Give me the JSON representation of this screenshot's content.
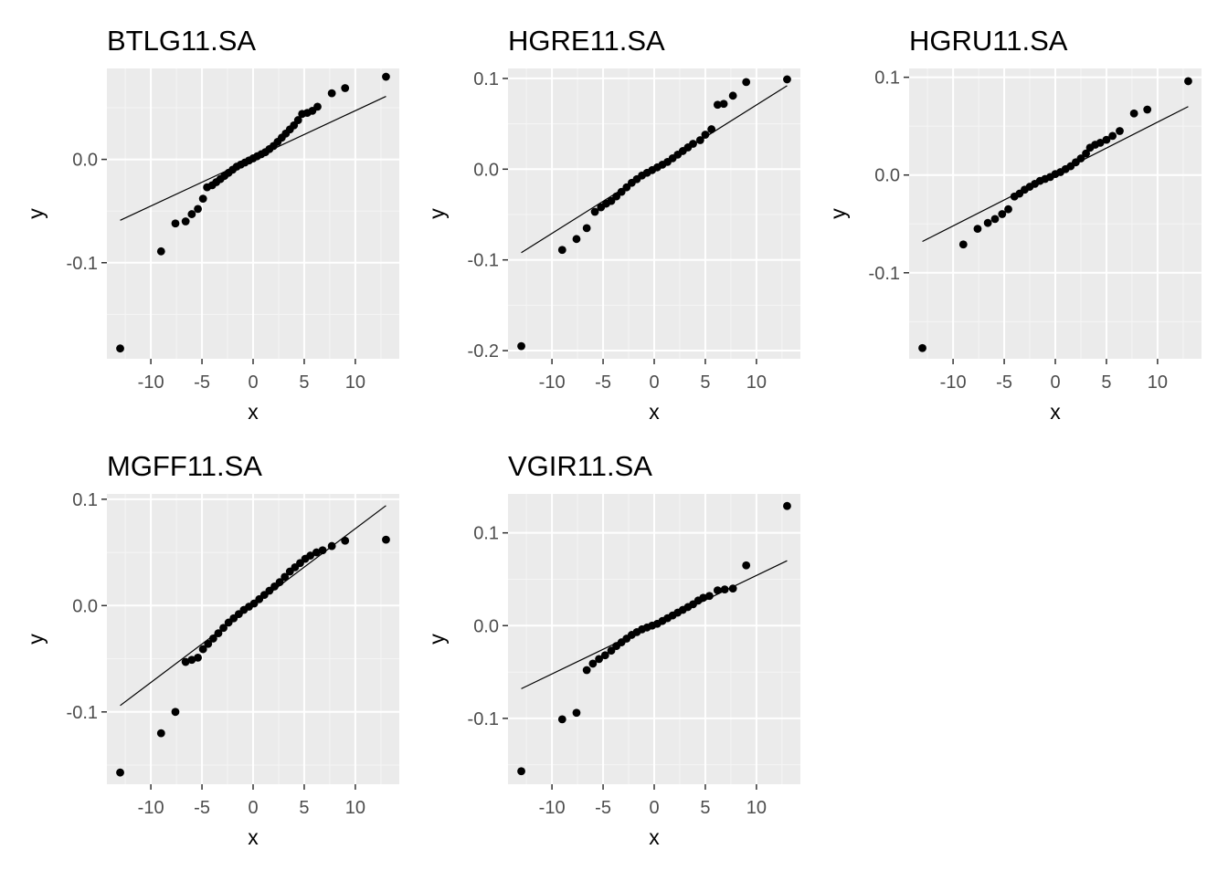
{
  "chart_data": [
    {
      "type": "scatter",
      "title": "BTLG11.SA",
      "xlabel": "x",
      "ylabel": "y",
      "xlim": [
        -14.3,
        14.3
      ],
      "ylim": [
        -0.193,
        0.088
      ],
      "x_ticks": [
        -10,
        -5,
        0,
        5,
        10
      ],
      "x_tick_labels": [
        "-10",
        "-5",
        "0",
        "5",
        "10"
      ],
      "y_ticks": [
        -0.1,
        0.0
      ],
      "y_tick_labels": [
        "-0.1",
        "0.0"
      ],
      "line": [
        [
          -13.0,
          -0.059
        ],
        [
          13.0,
          0.061
        ]
      ],
      "points": [
        [
          -13.0,
          -0.183
        ],
        [
          -9.0,
          -0.089
        ],
        [
          -7.6,
          -0.062
        ],
        [
          -6.6,
          -0.06
        ],
        [
          -6.0,
          -0.053
        ],
        [
          -5.4,
          -0.048
        ],
        [
          -4.9,
          -0.038
        ],
        [
          -4.5,
          -0.027
        ],
        [
          -4.0,
          -0.025
        ],
        [
          -3.6,
          -0.022
        ],
        [
          -3.2,
          -0.019
        ],
        [
          -2.8,
          -0.016
        ],
        [
          -2.4,
          -0.013
        ],
        [
          -2.0,
          -0.01
        ],
        [
          -1.6,
          -0.007
        ],
        [
          -1.2,
          -0.005
        ],
        [
          -0.8,
          -0.003
        ],
        [
          -0.4,
          -0.001
        ],
        [
          0.0,
          0.001
        ],
        [
          0.4,
          0.003
        ],
        [
          0.8,
          0.005
        ],
        [
          1.2,
          0.007
        ],
        [
          1.6,
          0.01
        ],
        [
          2.0,
          0.013
        ],
        [
          2.4,
          0.017
        ],
        [
          2.8,
          0.021
        ],
        [
          3.2,
          0.025
        ],
        [
          3.6,
          0.029
        ],
        [
          4.0,
          0.033
        ],
        [
          4.4,
          0.038
        ],
        [
          4.8,
          0.044
        ],
        [
          5.3,
          0.045
        ],
        [
          5.8,
          0.047
        ],
        [
          6.3,
          0.051
        ],
        [
          7.7,
          0.064
        ],
        [
          9.0,
          0.069
        ],
        [
          13.0,
          0.08
        ]
      ]
    },
    {
      "type": "scatter",
      "title": "HGRE11.SA",
      "xlabel": "x",
      "ylabel": "y",
      "xlim": [
        -14.3,
        14.3
      ],
      "ylim": [
        -0.209,
        0.111
      ],
      "x_ticks": [
        -10,
        -5,
        0,
        5,
        10
      ],
      "x_tick_labels": [
        "-10",
        "-5",
        "0",
        "5",
        "10"
      ],
      "y_ticks": [
        -0.2,
        -0.1,
        0.0,
        0.1
      ],
      "y_tick_labels": [
        "-0.2",
        "-0.1",
        "0.0",
        "0.1"
      ],
      "line": [
        [
          -13.0,
          -0.092
        ],
        [
          13.0,
          0.092
        ]
      ],
      "points": [
        [
          -13.0,
          -0.195
        ],
        [
          -9.0,
          -0.089
        ],
        [
          -7.6,
          -0.077
        ],
        [
          -6.6,
          -0.065
        ],
        [
          -5.8,
          -0.047
        ],
        [
          -5.2,
          -0.042
        ],
        [
          -4.7,
          -0.038
        ],
        [
          -4.2,
          -0.035
        ],
        [
          -3.7,
          -0.03
        ],
        [
          -3.2,
          -0.025
        ],
        [
          -2.7,
          -0.02
        ],
        [
          -2.2,
          -0.015
        ],
        [
          -1.7,
          -0.011
        ],
        [
          -1.2,
          -0.007
        ],
        [
          -0.7,
          -0.004
        ],
        [
          -0.2,
          -0.001
        ],
        [
          0.3,
          0.002
        ],
        [
          0.8,
          0.005
        ],
        [
          1.3,
          0.008
        ],
        [
          1.8,
          0.012
        ],
        [
          2.3,
          0.016
        ],
        [
          2.8,
          0.02
        ],
        [
          3.3,
          0.024
        ],
        [
          3.8,
          0.028
        ],
        [
          4.5,
          0.032
        ],
        [
          5.0,
          0.038
        ],
        [
          5.6,
          0.044
        ],
        [
          6.2,
          0.071
        ],
        [
          6.8,
          0.072
        ],
        [
          7.7,
          0.081
        ],
        [
          9.0,
          0.096
        ],
        [
          13.0,
          0.099
        ]
      ]
    },
    {
      "type": "scatter",
      "title": "HGRU11.SA",
      "xlabel": "x",
      "ylabel": "y",
      "xlim": [
        -14.3,
        14.3
      ],
      "ylim": [
        -0.188,
        0.109
      ],
      "x_ticks": [
        -10,
        -5,
        0,
        5,
        10
      ],
      "x_tick_labels": [
        "-10",
        "-5",
        "0",
        "5",
        "10"
      ],
      "y_ticks": [
        -0.1,
        0.0,
        0.1
      ],
      "y_tick_labels": [
        "-0.1",
        "0.0",
        "0.1"
      ],
      "line": [
        [
          -13.0,
          -0.068
        ],
        [
          13.0,
          0.07
        ]
      ],
      "points": [
        [
          -13.0,
          -0.177
        ],
        [
          -9.0,
          -0.071
        ],
        [
          -7.6,
          -0.055
        ],
        [
          -6.6,
          -0.049
        ],
        [
          -5.9,
          -0.045
        ],
        [
          -5.2,
          -0.04
        ],
        [
          -4.6,
          -0.035
        ],
        [
          -4.0,
          -0.022
        ],
        [
          -3.5,
          -0.019
        ],
        [
          -3.0,
          -0.015
        ],
        [
          -2.5,
          -0.012
        ],
        [
          -2.0,
          -0.009
        ],
        [
          -1.5,
          -0.006
        ],
        [
          -1.0,
          -0.004
        ],
        [
          -0.5,
          -0.002
        ],
        [
          0.0,
          0.001
        ],
        [
          0.5,
          0.003
        ],
        [
          1.0,
          0.006
        ],
        [
          1.5,
          0.009
        ],
        [
          2.0,
          0.013
        ],
        [
          2.5,
          0.017
        ],
        [
          3.0,
          0.022
        ],
        [
          3.4,
          0.028
        ],
        [
          3.9,
          0.031
        ],
        [
          4.4,
          0.033
        ],
        [
          5.0,
          0.036
        ],
        [
          5.6,
          0.04
        ],
        [
          6.3,
          0.045
        ],
        [
          7.7,
          0.063
        ],
        [
          9.0,
          0.067
        ],
        [
          13.0,
          0.096
        ]
      ]
    },
    {
      "type": "scatter",
      "title": "MGFF11.SA",
      "xlabel": "x",
      "ylabel": "y",
      "xlim": [
        -14.3,
        14.3
      ],
      "ylim": [
        -0.168,
        0.105
      ],
      "x_ticks": [
        -10,
        -5,
        0,
        5,
        10
      ],
      "x_tick_labels": [
        "-10",
        "-5",
        "0",
        "5",
        "10"
      ],
      "y_ticks": [
        -0.1,
        0.0,
        0.1
      ],
      "y_tick_labels": [
        "-0.1",
        "0.0",
        "0.1"
      ],
      "line": [
        [
          -13.0,
          -0.094
        ],
        [
          13.0,
          0.094
        ]
      ],
      "points": [
        [
          -13.0,
          -0.157
        ],
        [
          -9.0,
          -0.12
        ],
        [
          -7.6,
          -0.1
        ],
        [
          -6.6,
          -0.053
        ],
        [
          -6.0,
          -0.051
        ],
        [
          -5.4,
          -0.049
        ],
        [
          -4.9,
          -0.041
        ],
        [
          -4.4,
          -0.036
        ],
        [
          -3.9,
          -0.031
        ],
        [
          -3.4,
          -0.026
        ],
        [
          -2.9,
          -0.021
        ],
        [
          -2.4,
          -0.016
        ],
        [
          -1.9,
          -0.012
        ],
        [
          -1.4,
          -0.008
        ],
        [
          -0.9,
          -0.004
        ],
        [
          -0.4,
          -0.001
        ],
        [
          0.1,
          0.002
        ],
        [
          0.6,
          0.006
        ],
        [
          1.1,
          0.01
        ],
        [
          1.6,
          0.014
        ],
        [
          2.1,
          0.018
        ],
        [
          2.6,
          0.022
        ],
        [
          3.1,
          0.027
        ],
        [
          3.6,
          0.032
        ],
        [
          4.1,
          0.036
        ],
        [
          4.6,
          0.04
        ],
        [
          5.1,
          0.044
        ],
        [
          5.6,
          0.047
        ],
        [
          6.2,
          0.05
        ],
        [
          6.8,
          0.052
        ],
        [
          7.7,
          0.056
        ],
        [
          9.0,
          0.061
        ],
        [
          13.0,
          0.062
        ]
      ]
    },
    {
      "type": "scatter",
      "title": "VGIR11.SA",
      "xlabel": "x",
      "ylabel": "y",
      "xlim": [
        -14.3,
        14.3
      ],
      "ylim": [
        -0.171,
        0.142
      ],
      "x_ticks": [
        -10,
        -5,
        0,
        5,
        10
      ],
      "x_tick_labels": [
        "-10",
        "-5",
        "0",
        "5",
        "10"
      ],
      "y_ticks": [
        -0.1,
        0.0,
        0.1
      ],
      "y_tick_labels": [
        "-0.1",
        "0.0",
        "0.1"
      ],
      "line": [
        [
          -13.0,
          -0.068
        ],
        [
          13.0,
          0.07
        ]
      ],
      "points": [
        [
          -13.0,
          -0.157
        ],
        [
          -9.0,
          -0.101
        ],
        [
          -7.6,
          -0.094
        ],
        [
          -6.6,
          -0.048
        ],
        [
          -6.0,
          -0.041
        ],
        [
          -5.4,
          -0.036
        ],
        [
          -4.8,
          -0.032
        ],
        [
          -4.2,
          -0.027
        ],
        [
          -3.7,
          -0.022
        ],
        [
          -3.2,
          -0.018
        ],
        [
          -2.7,
          -0.014
        ],
        [
          -2.2,
          -0.01
        ],
        [
          -1.7,
          -0.007
        ],
        [
          -1.2,
          -0.004
        ],
        [
          -0.7,
          -0.002
        ],
        [
          -0.2,
          0.0
        ],
        [
          0.3,
          0.002
        ],
        [
          0.8,
          0.005
        ],
        [
          1.3,
          0.008
        ],
        [
          1.8,
          0.011
        ],
        [
          2.3,
          0.014
        ],
        [
          2.8,
          0.017
        ],
        [
          3.3,
          0.02
        ],
        [
          3.8,
          0.023
        ],
        [
          4.3,
          0.027
        ],
        [
          4.8,
          0.03
        ],
        [
          5.4,
          0.032
        ],
        [
          6.2,
          0.038
        ],
        [
          6.9,
          0.039
        ],
        [
          7.7,
          0.04
        ],
        [
          9.0,
          0.065
        ],
        [
          13.0,
          0.129
        ]
      ]
    }
  ]
}
